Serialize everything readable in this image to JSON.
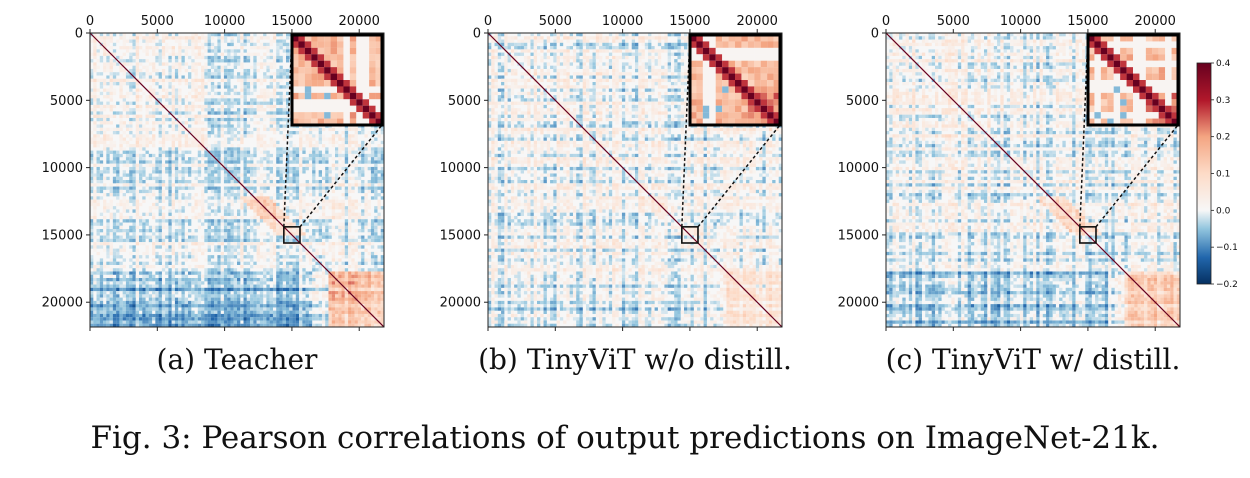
{
  "figure": {
    "caption": "Fig. 3: Pearson correlations of output predictions on ImageNet-21k."
  },
  "colorbar": {
    "range": [
      -0.2,
      0.4
    ],
    "ticks": [
      "0.4",
      "0.3",
      "0.2",
      "0.1",
      "0.0",
      "−0.1",
      "−0.2"
    ],
    "tick_values": [
      0.4,
      0.3,
      0.2,
      0.1,
      0.0,
      -0.1,
      -0.2
    ],
    "colors": {
      "high": "#67001f",
      "mid": "#f7f7f7",
      "low": "#053061"
    }
  },
  "chart_data": [
    {
      "type": "heatmap",
      "caption": "(a) Teacher",
      "x_ticks": [
        "0",
        "5000",
        "10000",
        "15000",
        "20000"
      ],
      "y_ticks": [
        "0",
        "5000",
        "10000",
        "15000",
        "20000"
      ],
      "tick_values": [
        0,
        5000,
        10000,
        15000,
        20000
      ],
      "xlim": [
        0,
        21841
      ],
      "ylim": [
        0,
        21841
      ],
      "zoom_region": [
        14400,
        15600
      ],
      "diagonal_value": 0.4,
      "block_strength": 1.0
    },
    {
      "type": "heatmap",
      "caption": "(b) TinyViT w/o distill.",
      "x_ticks": [
        "0",
        "5000",
        "10000",
        "15000",
        "20000"
      ],
      "y_ticks": [
        "0",
        "5000",
        "10000",
        "15000",
        "20000"
      ],
      "tick_values": [
        0,
        5000,
        10000,
        15000,
        20000
      ],
      "xlim": [
        0,
        21841
      ],
      "ylim": [
        0,
        21841
      ],
      "zoom_region": [
        14400,
        15600
      ],
      "diagonal_value": 0.4,
      "block_strength": 0.35
    },
    {
      "type": "heatmap",
      "caption": "(c) TinyViT w/ distill.",
      "x_ticks": [
        "0",
        "5000",
        "10000",
        "15000",
        "20000"
      ],
      "y_ticks": [
        "0",
        "5000",
        "10000",
        "15000",
        "20000"
      ],
      "tick_values": [
        0,
        5000,
        10000,
        15000,
        20000
      ],
      "xlim": [
        0,
        21841
      ],
      "ylim": [
        0,
        21841
      ],
      "zoom_region": [
        14400,
        15600
      ],
      "diagonal_value": 0.4,
      "block_strength": 0.8
    }
  ]
}
